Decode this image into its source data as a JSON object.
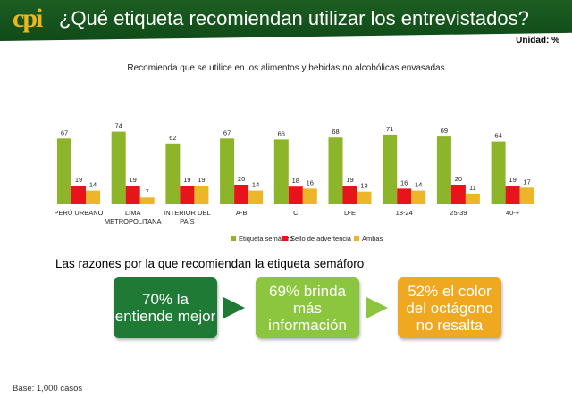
{
  "header": {
    "logo": "cpi",
    "title": "¿Qué etiqueta recomiendan utilizar los entrevistados?",
    "unit": "Unidad: %"
  },
  "chart_data": {
    "type": "bar",
    "title": "Recomienda que se utilice en los alimentos y bebidas no alcohólicas envasadas",
    "categories": [
      "PERÚ URBANO",
      "LIMA METROPOLITANA",
      "INTERIOR DEL PAÍS",
      "A-B",
      "C",
      "D-E",
      "18-24",
      "25-39",
      "40-+"
    ],
    "series": [
      {
        "name": "Etiqueta semáforo",
        "color": "#8db52a",
        "values": [
          67,
          74,
          62,
          67,
          66,
          68,
          71,
          69,
          64
        ]
      },
      {
        "name": "Sello de advertencia",
        "color": "#e8141c",
        "values": [
          19,
          19,
          19,
          20,
          18,
          19,
          16,
          20,
          19
        ]
      },
      {
        "name": "Ambas",
        "color": "#ecb52a",
        "values": [
          14,
          7,
          19,
          14,
          16,
          13,
          14,
          11,
          17
        ]
      }
    ],
    "ylim": [
      0,
      80
    ],
    "grid": false,
    "legend": "bottom-right",
    "data_labels": true
  },
  "reasons": {
    "title": "Las razones por la que recomiendan la etiqueta semáforo",
    "items": [
      {
        "text": "70% la entiende mejor",
        "color": "#1e7a35"
      },
      {
        "text": "69% brinda más información",
        "color": "#8cc63f"
      },
      {
        "text": "52% el color del octágono no resalta",
        "color": "#f0a820"
      }
    ]
  },
  "footer": {
    "base": "Base: 1,000 casos"
  }
}
